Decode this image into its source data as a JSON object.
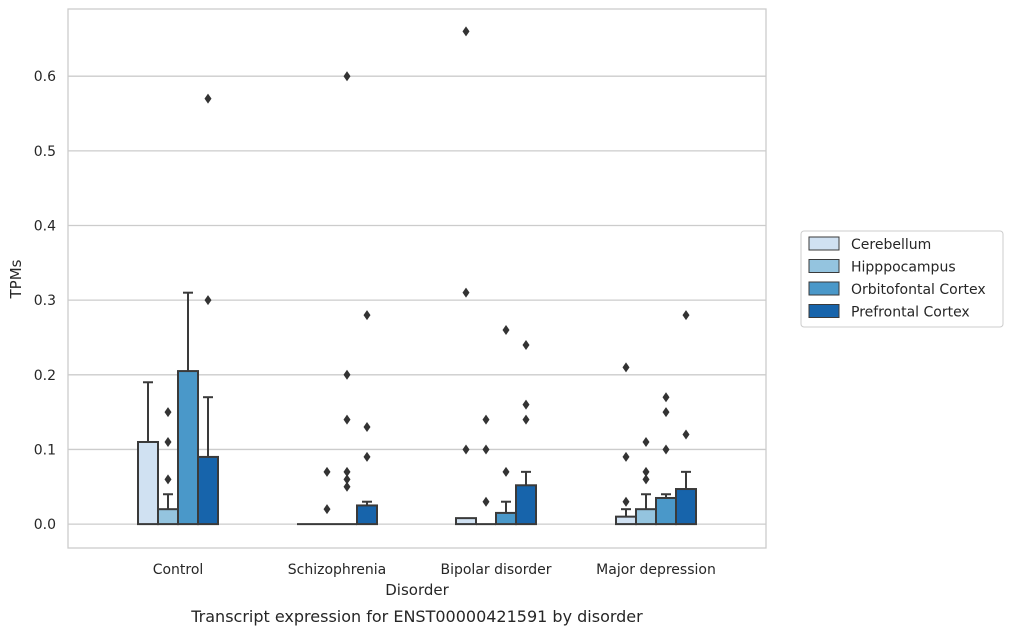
{
  "chart_data": {
    "type": "bar",
    "title": "",
    "caption": "Transcript expression for ENST00000421591 by disorder",
    "xlabel": "Disorder",
    "ylabel": "TPMs",
    "ylim": [
      -0.032,
      0.69
    ],
    "yticks": [
      "0.0",
      "0.1",
      "0.2",
      "0.3",
      "0.4",
      "0.5",
      "0.6"
    ],
    "grid": "horizontal",
    "legend_position": "right",
    "categories": [
      "Control",
      "Schizophrenia",
      "Bipolar disorder",
      "Major depression"
    ],
    "series": [
      {
        "name": "Cerebellum",
        "color": "#d0e1f2",
        "values": [
          0.11,
          0.0,
          0.008,
          0.01
        ],
        "error_upper": [
          0.19,
          null,
          null,
          0.02
        ],
        "outliers": [
          [],
          [],
          [
            0.66,
            0.31,
            0.1
          ],
          [
            0.21,
            0.09,
            0.03
          ]
        ]
      },
      {
        "name": "Hipppocampus",
        "color": "#94c4df",
        "values": [
          0.02,
          0.0,
          0.0,
          0.02
        ],
        "error_upper": [
          0.04,
          null,
          null,
          0.04
        ],
        "outliers": [
          [
            0.15,
            0.11,
            0.06
          ],
          [
            0.07,
            0.02
          ],
          [
            0.14,
            0.1,
            0.03
          ],
          [
            0.11,
            0.07,
            0.06
          ]
        ]
      },
      {
        "name": "Orbitofontal Cortex",
        "color": "#4a98c9",
        "values": [
          0.205,
          0.0,
          0.015,
          0.035
        ],
        "error_upper": [
          0.31,
          null,
          0.03,
          0.04
        ],
        "outliers": [
          [],
          [
            0.6,
            0.06,
            0.05,
            0.2,
            0.14,
            0.07
          ],
          [
            0.26,
            0.07
          ],
          [
            0.17,
            0.15,
            0.1
          ]
        ]
      },
      {
        "name": "Prefrontal Cortex",
        "color": "#1764ab",
        "values": [
          0.09,
          0.025,
          0.052,
          0.047
        ],
        "error_upper": [
          0.17,
          0.03,
          0.07,
          0.07
        ],
        "outliers": [
          [
            0.57,
            0.3
          ],
          [
            0.28,
            0.13,
            0.09
          ],
          [
            0.24,
            0.16,
            0.14
          ],
          [
            0.28,
            0.12
          ]
        ]
      }
    ]
  }
}
